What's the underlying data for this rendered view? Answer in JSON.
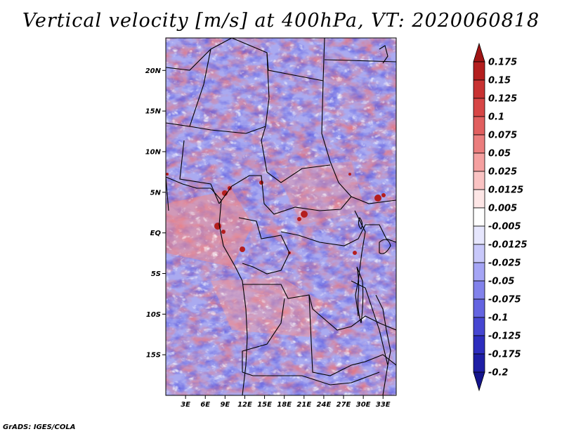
{
  "app": {
    "footer": "GrADS: IGES/COLA"
  },
  "chart_data": {
    "type": "heatmap",
    "title": "Vertical velocity [m/s] at 400hPa, VT: 2020060818",
    "variable": "Vertical velocity",
    "units": "m/s",
    "level": "400hPa",
    "valid_time": "2020060818",
    "lon_range": [
      0,
      35
    ],
    "lat_range": [
      -20,
      24
    ],
    "x_ticks": [
      {
        "label": "3E",
        "lon": 3
      },
      {
        "label": "6E",
        "lon": 6
      },
      {
        "label": "9E",
        "lon": 9
      },
      {
        "label": "12E",
        "lon": 12
      },
      {
        "label": "15E",
        "lon": 15
      },
      {
        "label": "18E",
        "lon": 18
      },
      {
        "label": "21E",
        "lon": 21
      },
      {
        "label": "24E",
        "lon": 24
      },
      {
        "label": "27E",
        "lon": 27
      },
      {
        "label": "30E",
        "lon": 30
      },
      {
        "label": "33E",
        "lon": 33
      }
    ],
    "y_ticks": [
      {
        "label": "20N",
        "lat": 20
      },
      {
        "label": "15N",
        "lat": 15
      },
      {
        "label": "10N",
        "lat": 10
      },
      {
        "label": "5N",
        "lat": 5
      },
      {
        "label": "EQ",
        "lat": 0
      },
      {
        "label": "5S",
        "lat": -5
      },
      {
        "label": "10S",
        "lat": -10
      },
      {
        "label": "15S",
        "lat": -15
      }
    ],
    "colorbar": {
      "labels": [
        "0.175",
        "0.15",
        "0.125",
        "0.1",
        "0.075",
        "0.05",
        "0.025",
        "0.0125",
        "0.005",
        "-0.005",
        "-0.0125",
        "-0.025",
        "-0.05",
        "-0.075",
        "-0.1",
        "-0.125",
        "-0.175",
        "-0.2"
      ],
      "colors": [
        "#a01414",
        "#b41e1e",
        "#c83232",
        "#d74646",
        "#e15f5f",
        "#eb7d7d",
        "#f5a0a0",
        "#fac3c3",
        "#fde6e6",
        "#ffffff",
        "#e6e6fd",
        "#c8c8fa",
        "#a5a5f5",
        "#8282eb",
        "#6464e1",
        "#4646d2",
        "#2d2dbe",
        "#1e1ea5",
        "#14148c"
      ]
    }
  }
}
